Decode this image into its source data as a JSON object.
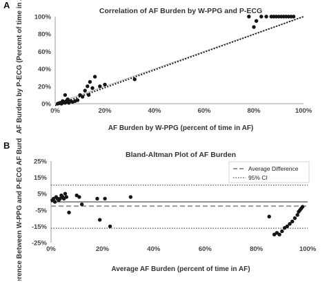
{
  "chart_data": [
    {
      "type": "scatter",
      "panel": "A",
      "title": "Correlation of AF Burden by W-PPG and P-ECG",
      "xlabel": "AF Burden by W-PPG (percent of time in AF)",
      "ylabel": "AF Burden by P-ECG (Percent of time in AF)",
      "xlim": [
        0,
        100
      ],
      "ylim": [
        0,
        100
      ],
      "xticks": [
        "0%",
        "20%",
        "40%",
        "60%",
        "80%",
        "100%"
      ],
      "yticks": [
        "0%",
        "20%",
        "40%",
        "60%",
        "80%",
        "100%"
      ],
      "grid": false,
      "points": [
        [
          1,
          0
        ],
        [
          1.5,
          0.5
        ],
        [
          2,
          1
        ],
        [
          2.5,
          0
        ],
        [
          3,
          1
        ],
        [
          3.5,
          2
        ],
        [
          4,
          1
        ],
        [
          4.5,
          3
        ],
        [
          5,
          2
        ],
        [
          5.5,
          1
        ],
        [
          3,
          3
        ],
        [
          4,
          10
        ],
        [
          5,
          5
        ],
        [
          6,
          3
        ],
        [
          7,
          2
        ],
        [
          8,
          3
        ],
        [
          9,
          4
        ],
        [
          10,
          10
        ],
        [
          11,
          8
        ],
        [
          12,
          15
        ],
        [
          13,
          20
        ],
        [
          13.5,
          10
        ],
        [
          14,
          25
        ],
        [
          15,
          18
        ],
        [
          16,
          31
        ],
        [
          18,
          20
        ],
        [
          20,
          22
        ],
        [
          32,
          28
        ],
        [
          78,
          100
        ],
        [
          80,
          88
        ],
        [
          81,
          95
        ],
        [
          83,
          100
        ],
        [
          85,
          100
        ],
        [
          87,
          100
        ],
        [
          88,
          100
        ],
        [
          89,
          100
        ],
        [
          90,
          100
        ],
        [
          91,
          100
        ],
        [
          92,
          100
        ],
        [
          93,
          100
        ],
        [
          94,
          100
        ],
        [
          95,
          100
        ],
        [
          96,
          100
        ]
      ],
      "series": [
        {
          "name": "identity line",
          "x": [
            0,
            100
          ],
          "y": [
            0,
            100
          ],
          "style": "solid",
          "color": "#aaaaaa"
        },
        {
          "name": "trend line",
          "x": [
            0,
            100
          ],
          "y": [
            -2,
            100
          ],
          "style": "dotted",
          "color": "#111111"
        }
      ]
    },
    {
      "type": "scatter",
      "panel": "B",
      "title": "Bland-Altman Plot of AF Burden",
      "xlabel": "Average AF Burden (percent of time in AF)",
      "ylabel": "Difference Between W-PPG and P-ECG AF Burden",
      "xlim": [
        0,
        100
      ],
      "ylim": [
        -25,
        25
      ],
      "xticks": [
        "0%",
        "20%",
        "40%",
        "60%",
        "80%",
        "100%"
      ],
      "yticks": [
        "25%",
        "15%",
        "5%",
        "-5%",
        "-15%",
        "-25%"
      ],
      "grid": false,
      "legend": {
        "placement": "top-right",
        "entries": [
          {
            "label": "Average Difference",
            "style": "dashed",
            "color": "#999999"
          },
          {
            "label": "95% CI",
            "style": "dotted",
            "color": "#666666"
          }
        ]
      },
      "reference_lines": {
        "zero": 0,
        "average_difference": -2.6,
        "ci_upper": 10.3,
        "ci_lower": -16.2
      },
      "points": [
        [
          0.5,
          1
        ],
        [
          1,
          2
        ],
        [
          1.5,
          0
        ],
        [
          2,
          3
        ],
        [
          2.5,
          2
        ],
        [
          3,
          1
        ],
        [
          3.5,
          2
        ],
        [
          4,
          4
        ],
        [
          4.5,
          3
        ],
        [
          5,
          2
        ],
        [
          5.5,
          5
        ],
        [
          6,
          3
        ],
        [
          7,
          -6.5
        ],
        [
          10,
          4
        ],
        [
          11,
          3
        ],
        [
          12,
          -1.5
        ],
        [
          18,
          2
        ],
        [
          19,
          -11
        ],
        [
          21,
          2
        ],
        [
          23,
          -15
        ],
        [
          31,
          3
        ],
        [
          85,
          -9
        ],
        [
          87,
          -20
        ],
        [
          88,
          -19
        ],
        [
          89,
          -20
        ],
        [
          90,
          -18
        ],
        [
          91,
          -16
        ],
        [
          92,
          -15
        ],
        [
          93,
          -13.5
        ],
        [
          94,
          -12
        ],
        [
          95,
          -10
        ],
        [
          96,
          -8
        ],
        [
          96.5,
          -6
        ],
        [
          97,
          -5
        ],
        [
          97.5,
          -4
        ],
        [
          98,
          -3
        ]
      ]
    }
  ]
}
